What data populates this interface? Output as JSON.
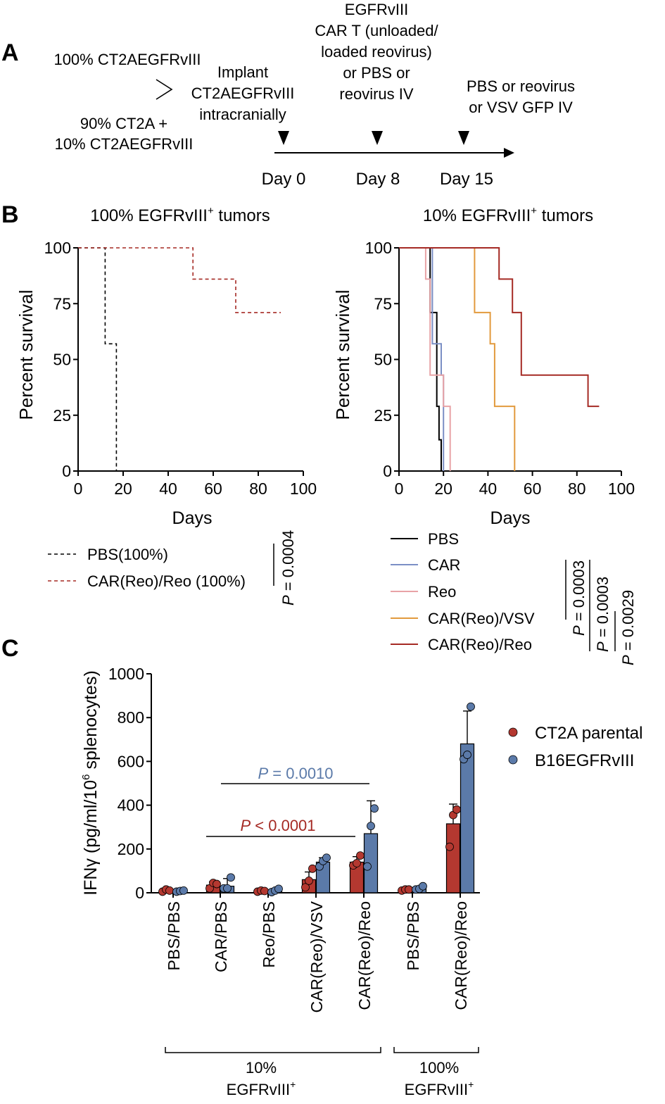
{
  "panel_labels": {
    "a": "A",
    "b": "B",
    "c": "C"
  },
  "panel_a": {
    "group1": "100% CT2AEGFRvIII",
    "group2_line1": "90% CT2A +",
    "group2_line2": "10% CT2AEGFRvIII",
    "implant": [
      "Implant",
      "CT2AEGFRvIII",
      "intracranially"
    ],
    "day8_treatment": [
      "EGFRvIII",
      "CAR T (unloaded/",
      "loaded reovirus)",
      "or PBS or",
      "reovirus IV"
    ],
    "day15_treatment": [
      "PBS or reovirus",
      "or VSV GFP IV"
    ],
    "days": [
      "Day 0",
      "Day 8",
      "Day 15"
    ]
  },
  "panel_b": {
    "y_ticks": [
      "0",
      "25",
      "50",
      "75",
      "100"
    ],
    "x_ticks": [
      "0",
      "20",
      "40",
      "60",
      "80",
      "100"
    ],
    "p_left": "= 0.0004",
    "p_right": [
      "= 0.0003",
      "= 0.0003",
      "= 0.0029"
    ],
    "p_symbol": "P"
  },
  "panel_c": {
    "p_blue": "= 0.0010",
    "p_red": "< 0.0001",
    "p_symbol": "P",
    "group_labels": [
      [
        "10%",
        "EGFRvIII"
      ],
      [
        "100%",
        "EGFRvIII"
      ]
    ],
    "group_sup": "+"
  },
  "chart_data": [
    {
      "type": "line",
      "subtype": "kaplan-meier",
      "title": "100% EGFRvIII",
      "title_sup": "+",
      "title_suffix": " tumors",
      "xlabel": "Days",
      "ylabel": "Percent survival",
      "xlim": [
        0,
        100
      ],
      "ylim": [
        0,
        100
      ],
      "legend_position": "bottom",
      "series": [
        {
          "name": "PBS(100%)",
          "color": "#000000",
          "dash": true,
          "x": [
            0,
            12,
            12,
            17,
            17
          ],
          "y": [
            100,
            100,
            57,
            57,
            0
          ]
        },
        {
          "name": "CAR(Reo)/Reo (100%)",
          "color": "#a52a24",
          "dash": true,
          "x": [
            0,
            51,
            51,
            70,
            70,
            90
          ],
          "y": [
            100,
            100,
            86,
            86,
            71,
            71
          ]
        }
      ]
    },
    {
      "type": "line",
      "subtype": "kaplan-meier",
      "title": "10% EGFRvIII",
      "title_sup": "+",
      "title_suffix": " tumors",
      "xlabel": "Days",
      "ylabel": "Percent survival",
      "xlim": [
        0,
        100
      ],
      "ylim": [
        0,
        100
      ],
      "legend_position": "bottom",
      "series": [
        {
          "name": "PBS",
          "color": "#000000",
          "x": [
            0,
            14,
            14,
            17,
            17,
            18,
            18,
            19,
            19
          ],
          "y": [
            100,
            100,
            71,
            71,
            29,
            29,
            14,
            14,
            0
          ]
        },
        {
          "name": "CAR",
          "color": "#7b8fc5",
          "x": [
            0,
            15,
            15,
            19,
            19,
            20,
            20
          ],
          "y": [
            100,
            100,
            57,
            57,
            43,
            43,
            0
          ]
        },
        {
          "name": "Reo",
          "color": "#e8a3a6",
          "x": [
            0,
            12,
            12,
            14,
            14,
            20,
            20,
            23,
            23
          ],
          "y": [
            100,
            100,
            86,
            86,
            43,
            43,
            29,
            29,
            0
          ]
        },
        {
          "name": "CAR(Reo)/VSV",
          "color": "#e29a3d",
          "x": [
            0,
            34,
            34,
            41,
            41,
            43,
            43,
            52,
            52
          ],
          "y": [
            100,
            100,
            71,
            71,
            57,
            57,
            29,
            29,
            0
          ]
        },
        {
          "name": "CAR(Reo)/Reo",
          "color": "#a52a24",
          "x": [
            0,
            45,
            45,
            51,
            51,
            55,
            55,
            85,
            85,
            90
          ],
          "y": [
            100,
            100,
            86,
            86,
            71,
            71,
            43,
            43,
            29,
            29
          ]
        }
      ]
    },
    {
      "type": "bar",
      "ylabel": "IFNγ (pg/ml/10⁶ splenocytes)",
      "ylabel_parts": [
        "IFN",
        "γ",
        " (pg/ml/10",
        "6",
        " splenocytes)"
      ],
      "ylim": [
        0,
        1000
      ],
      "y_ticks": [
        "0",
        "200",
        "400",
        "600",
        "800",
        "1000"
      ],
      "legend_position": "right",
      "categories": [
        "PBS/PBS",
        "CAR/PBS",
        "Reo/PBS",
        "CAR(Reo)/VSV",
        "CAR(Reo)/Reo",
        "PBS/PBS",
        "CAR(Reo)/Reo"
      ],
      "series": [
        {
          "name": "CT2A parental",
          "color": "#b43830",
          "values": [
            10,
            35,
            8,
            60,
            140,
            13,
            315
          ],
          "errors": [
            0,
            15,
            0,
            35,
            25,
            0,
            90
          ],
          "points": [
            [
              5,
              15,
              10
            ],
            [
              20,
              45,
              40
            ],
            [
              5,
              10,
              8
            ],
            [
              25,
              55,
              110
            ],
            [
              125,
              135,
              170
            ],
            [
              10,
              15,
              15
            ],
            [
              210,
              355,
              380
            ]
          ]
        },
        {
          "name": "B16EGFRvIII",
          "color": "#5b7aa9",
          "values": [
            8,
            30,
            10,
            140,
            270,
            22,
            680
          ],
          "errors": [
            0,
            35,
            0,
            20,
            150,
            0,
            150
          ],
          "points": [
            [
              5,
              8,
              10
            ],
            [
              20,
              20,
              70
            ],
            [
              3,
              10,
              18
            ],
            [
              120,
              145,
              160
            ],
            [
              120,
              305,
              385
            ],
            [
              15,
              18,
              30
            ],
            [
              610,
              630,
              850
            ]
          ]
        }
      ]
    }
  ]
}
